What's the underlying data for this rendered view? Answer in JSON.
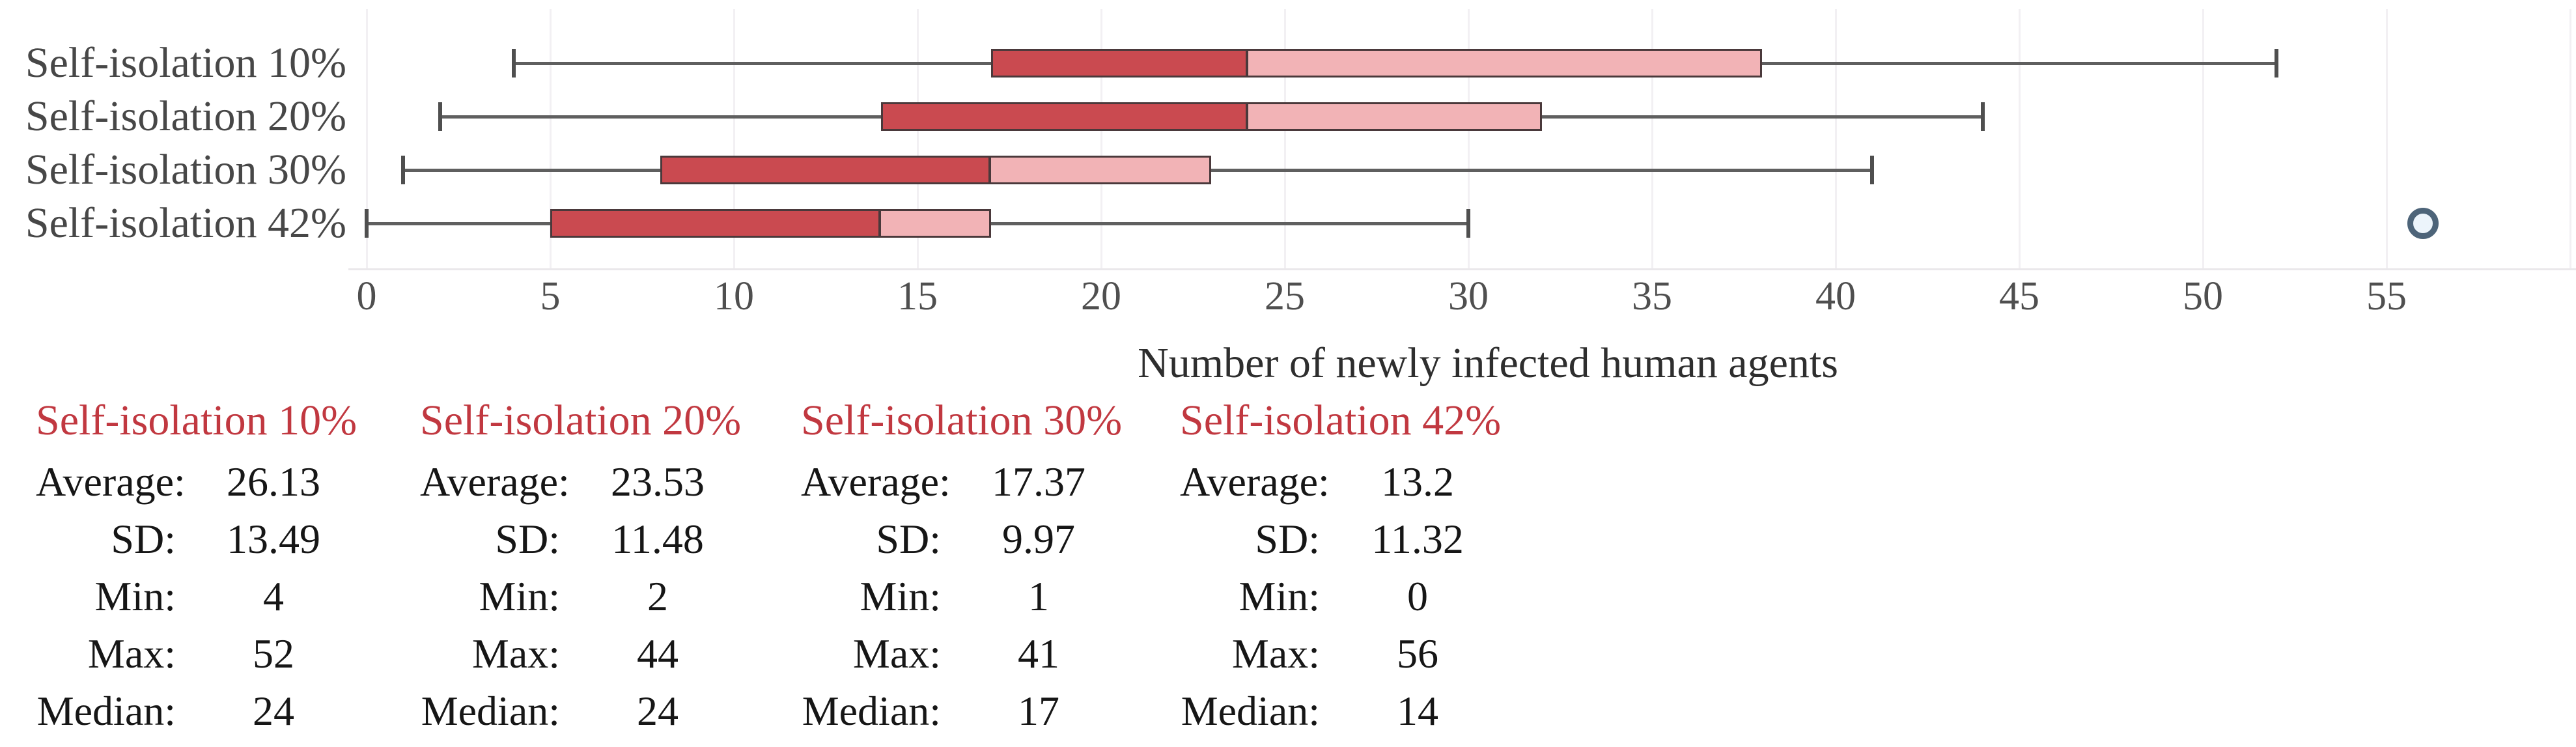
{
  "figure": {
    "background": "#ffffff"
  },
  "chart_data": {
    "type": "boxplot",
    "orientation": "horizontal",
    "title": "",
    "xlabel": "Number of newly infected human agents",
    "ylabel": "",
    "xlim": [
      0,
      60
    ],
    "x_ticks": [
      0,
      5,
      10,
      15,
      20,
      25,
      30,
      35,
      40,
      45,
      50,
      55
    ],
    "grid": "vertical-light",
    "legend": "none",
    "categories": [
      "Self-isolation 10%",
      "Self-isolation 20%",
      "Self-isolation 30%",
      "Self-isolation 42%"
    ],
    "series": [
      {
        "name": "Self-isolation 10%",
        "whisker_low": 4,
        "q1": 17,
        "median": 24,
        "q3": 38,
        "whisker_high": 52,
        "outliers": []
      },
      {
        "name": "Self-isolation 20%",
        "whisker_low": 2,
        "q1": 14,
        "median": 24,
        "q3": 32,
        "whisker_high": 44,
        "outliers": []
      },
      {
        "name": "Self-isolation 30%",
        "whisker_low": 1,
        "q1": 8,
        "median": 17,
        "q3": 23,
        "whisker_high": 41,
        "outliers": []
      },
      {
        "name": "Self-isolation 42%",
        "whisker_low": 0,
        "q1": 5,
        "median": 14,
        "q3": 17,
        "whisker_high": 30,
        "outliers": [
          56
        ]
      }
    ]
  },
  "stats_tables": [
    {
      "title": "Self-isolation 10%",
      "rows": [
        {
          "label": "Average:",
          "value": "26.13"
        },
        {
          "label": "SD:",
          "value": "13.49"
        },
        {
          "label": "Min:",
          "value": "4"
        },
        {
          "label": "Max:",
          "value": "52"
        },
        {
          "label": "Median:",
          "value": "24"
        }
      ]
    },
    {
      "title": "Self-isolation 20%",
      "rows": [
        {
          "label": "Average:",
          "value": "23.53"
        },
        {
          "label": "SD:",
          "value": "11.48"
        },
        {
          "label": "Min:",
          "value": "2"
        },
        {
          "label": "Max:",
          "value": "44"
        },
        {
          "label": "Median:",
          "value": "24"
        }
      ]
    },
    {
      "title": "Self-isolation 30%",
      "rows": [
        {
          "label": "Average:",
          "value": "17.37"
        },
        {
          "label": "SD:",
          "value": "9.97"
        },
        {
          "label": "Min:",
          "value": "1"
        },
        {
          "label": "Max:",
          "value": "41"
        },
        {
          "label": "Median:",
          "value": "17"
        }
      ]
    },
    {
      "title": "Self-isolation 42%",
      "rows": [
        {
          "label": "Average:",
          "value": "13.2"
        },
        {
          "label": "SD:",
          "value": "11.32"
        },
        {
          "label": "Min:",
          "value": "0"
        },
        {
          "label": "Max:",
          "value": "56"
        },
        {
          "label": "Median:",
          "value": "14"
        }
      ]
    }
  ],
  "colors": {
    "box_low_fill": "#ca4a50",
    "box_high_fill": "#f2b3b6",
    "box_border": "#4a393b",
    "whisker": "#5f5f5f",
    "whisker_cap": "#4f4f4f",
    "outlier_ring": "#4d6479",
    "outlier_fill": "#ecf4fb",
    "gridline": "#f2f0f3",
    "stats_header_red": "#c13840",
    "category_text": "#474747",
    "tick_text": "#4f4f4f"
  }
}
